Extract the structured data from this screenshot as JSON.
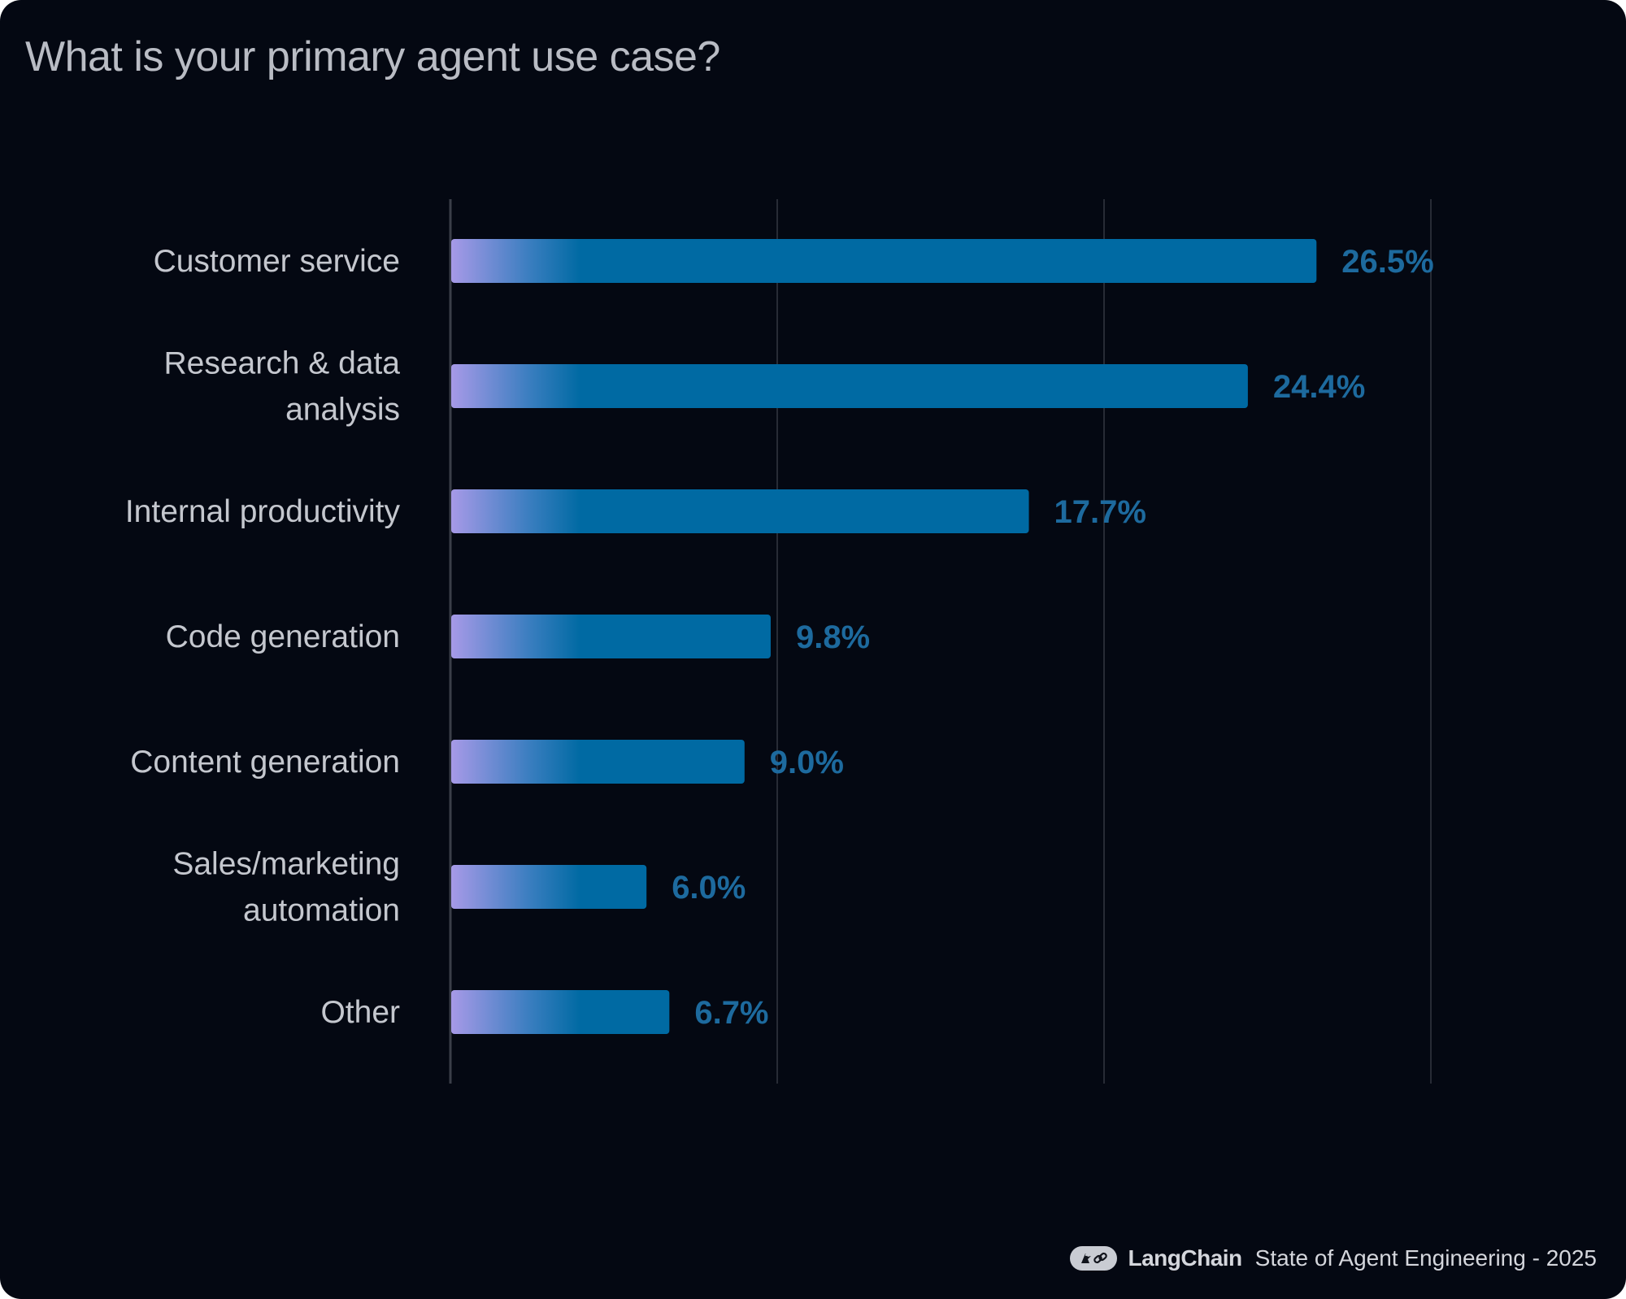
{
  "title": "What is your primary agent use case?",
  "chart_data": {
    "type": "bar",
    "orientation": "horizontal",
    "title": "What is your primary agent use case?",
    "categories": [
      "Customer service",
      "Research & data analysis",
      "Internal productivity",
      "Code generation",
      "Content generation",
      "Sales/marketing automation",
      "Other"
    ],
    "category_lines": [
      [
        "Customer service"
      ],
      [
        "Research & data",
        "analysis"
      ],
      [
        "Internal productivity"
      ],
      [
        "Code generation"
      ],
      [
        "Content generation"
      ],
      [
        "Sales/marketing",
        "automation"
      ],
      [
        "Other"
      ]
    ],
    "values": [
      26.5,
      24.4,
      17.7,
      9.8,
      9.0,
      6.0,
      6.7
    ],
    "value_labels": [
      "26.5%",
      "24.4%",
      "17.7%",
      "9.8%",
      "9.0%",
      "6.0%",
      "6.7%"
    ],
    "xlim": [
      0,
      30
    ],
    "x_gridlines": [
      0,
      10,
      20,
      30
    ],
    "tick_labels_shown": false,
    "grid": true,
    "legend": "none",
    "colors": {
      "bar": "#006aa3",
      "bar_gradient_start": "#a89ae8",
      "value_label": "#1d6a9e",
      "category_label": "#c4c7ce",
      "gridline": "#272b35",
      "axis_line": "#3a3e48",
      "background": "#040812"
    }
  },
  "footer": {
    "logo_icon": "langchain-parrot-link-icon",
    "brand": "LangChain",
    "report": "State of Agent Engineering - 2025"
  }
}
